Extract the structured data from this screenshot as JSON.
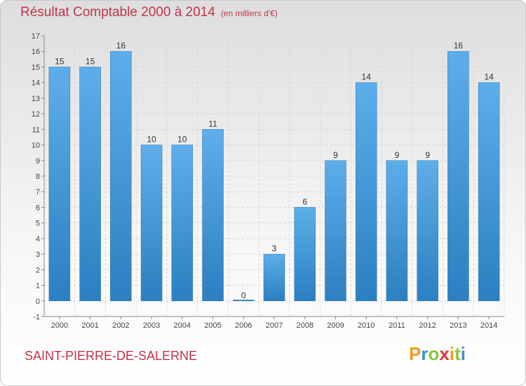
{
  "header": {
    "title": "Résultat Comptable 2000 à 2014",
    "subtitle": "(en milliers d'€)"
  },
  "footer": {
    "commune": "SAINT-PIERRE-DE-SALERNE",
    "logo": "Proxiti"
  },
  "colors": {
    "title": "#c1334a",
    "bar_top": "#5daeea",
    "bar_bottom": "#2c7fc0",
    "background_top": "#dedede",
    "background_bottom": "#ffffff"
  },
  "chart_data": {
    "type": "bar",
    "title": "Résultat Comptable 2000 à 2014",
    "subtitle": "(en milliers d'€)",
    "categories": [
      "2000",
      "2001",
      "2002",
      "2003",
      "2004",
      "2005",
      "2006",
      "2007",
      "2008",
      "2009",
      "2010",
      "2011",
      "2012",
      "2013",
      "2014"
    ],
    "values": [
      15,
      15,
      16,
      10,
      10,
      11,
      0,
      3,
      6,
      9,
      14,
      9,
      9,
      16,
      14
    ],
    "ylim": [
      -1,
      17
    ],
    "yticks": [
      -1,
      0,
      1,
      2,
      3,
      4,
      5,
      6,
      7,
      8,
      9,
      10,
      11,
      12,
      13,
      14,
      15,
      16,
      17
    ],
    "grid": true,
    "data_labels": true
  }
}
